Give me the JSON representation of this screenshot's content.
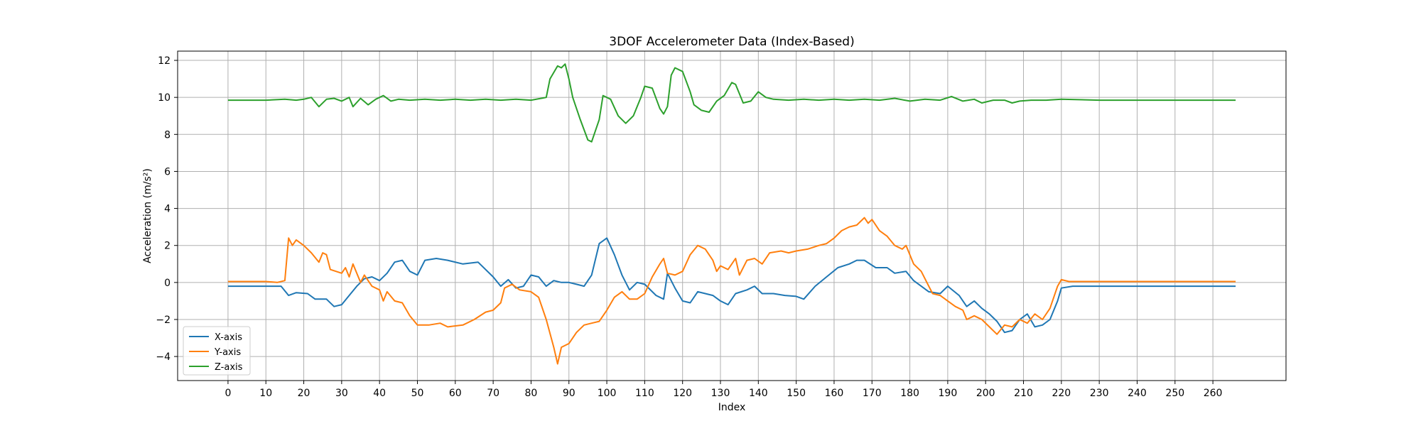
{
  "chart_data": {
    "type": "line",
    "title": "3DOF Accelerometer Data (Index-Based)",
    "xlabel": "Index",
    "ylabel": "Acceleration (m/s²)",
    "xlim": [
      -13.3,
      279.3
    ],
    "ylim": [
      -5.3,
      12.5
    ],
    "xticks": [
      0,
      10,
      20,
      30,
      40,
      50,
      60,
      70,
      80,
      90,
      100,
      110,
      120,
      130,
      140,
      150,
      160,
      170,
      180,
      190,
      200,
      210,
      220,
      230,
      240,
      250,
      260
    ],
    "yticks": [
      -4,
      -2,
      0,
      2,
      4,
      6,
      8,
      10,
      12
    ],
    "grid": true,
    "legend_position": "lower-left",
    "series": [
      {
        "name": "X-axis",
        "color": "#1f77b4",
        "points": [
          [
            0,
            -0.2
          ],
          [
            10,
            -0.2
          ],
          [
            14,
            -0.2
          ],
          [
            16,
            -0.7
          ],
          [
            18,
            -0.55
          ],
          [
            21,
            -0.6
          ],
          [
            23,
            -0.9
          ],
          [
            26,
            -0.9
          ],
          [
            28,
            -1.3
          ],
          [
            30,
            -1.2
          ],
          [
            32,
            -0.7
          ],
          [
            34,
            -0.2
          ],
          [
            36,
            0.2
          ],
          [
            38,
            0.3
          ],
          [
            40,
            0.1
          ],
          [
            42,
            0.5
          ],
          [
            44,
            1.1
          ],
          [
            46,
            1.2
          ],
          [
            48,
            0.6
          ],
          [
            50,
            0.4
          ],
          [
            52,
            1.2
          ],
          [
            55,
            1.3
          ],
          [
            58,
            1.2
          ],
          [
            62,
            1.0
          ],
          [
            66,
            1.1
          ],
          [
            70,
            0.3
          ],
          [
            72,
            -0.2
          ],
          [
            74,
            0.15
          ],
          [
            76,
            -0.3
          ],
          [
            78,
            -0.2
          ],
          [
            80,
            0.4
          ],
          [
            82,
            0.3
          ],
          [
            84,
            -0.2
          ],
          [
            86,
            0.1
          ],
          [
            88,
            0.0
          ],
          [
            90,
            0.0
          ],
          [
            92,
            -0.1
          ],
          [
            94,
            -0.2
          ],
          [
            96,
            0.4
          ],
          [
            98,
            2.1
          ],
          [
            100,
            2.4
          ],
          [
            102,
            1.5
          ],
          [
            104,
            0.4
          ],
          [
            106,
            -0.4
          ],
          [
            108,
            0.0
          ],
          [
            110,
            -0.1
          ],
          [
            113,
            -0.7
          ],
          [
            115,
            -0.9
          ],
          [
            116,
            0.5
          ],
          [
            118,
            -0.3
          ],
          [
            120,
            -1.0
          ],
          [
            122,
            -1.1
          ],
          [
            124,
            -0.5
          ],
          [
            126,
            -0.6
          ],
          [
            128,
            -0.7
          ],
          [
            130,
            -1.0
          ],
          [
            132,
            -1.2
          ],
          [
            134,
            -0.6
          ],
          [
            137,
            -0.4
          ],
          [
            139,
            -0.2
          ],
          [
            141,
            -0.6
          ],
          [
            144,
            -0.6
          ],
          [
            147,
            -0.7
          ],
          [
            150,
            -0.75
          ],
          [
            152,
            -0.9
          ],
          [
            155,
            -0.2
          ],
          [
            158,
            0.3
          ],
          [
            161,
            0.8
          ],
          [
            164,
            1.0
          ],
          [
            166,
            1.2
          ],
          [
            168,
            1.2
          ],
          [
            171,
            0.8
          ],
          [
            174,
            0.8
          ],
          [
            176,
            0.5
          ],
          [
            179,
            0.6
          ],
          [
            181,
            0.1
          ],
          [
            183,
            -0.2
          ],
          [
            185,
            -0.5
          ],
          [
            188,
            -0.6
          ],
          [
            190,
            -0.2
          ],
          [
            193,
            -0.7
          ],
          [
            195,
            -1.3
          ],
          [
            197,
            -1.0
          ],
          [
            199,
            -1.4
          ],
          [
            201,
            -1.7
          ],
          [
            203,
            -2.1
          ],
          [
            205,
            -2.7
          ],
          [
            207,
            -2.6
          ],
          [
            209,
            -2.0
          ],
          [
            211,
            -1.7
          ],
          [
            213,
            -2.4
          ],
          [
            215,
            -2.3
          ],
          [
            217,
            -2.0
          ],
          [
            219,
            -1.0
          ],
          [
            220,
            -0.3
          ],
          [
            223,
            -0.2
          ],
          [
            230,
            -0.2
          ],
          [
            240,
            -0.2
          ],
          [
            250,
            -0.2
          ],
          [
            260,
            -0.2
          ],
          [
            266,
            -0.2
          ]
        ]
      },
      {
        "name": "Y-axis",
        "color": "#ff7f0e",
        "points": [
          [
            0,
            0.05
          ],
          [
            10,
            0.05
          ],
          [
            13,
            0.0
          ],
          [
            15,
            0.1
          ],
          [
            16,
            2.4
          ],
          [
            17,
            2.0
          ],
          [
            18,
            2.3
          ],
          [
            20,
            2.0
          ],
          [
            22,
            1.6
          ],
          [
            24,
            1.1
          ],
          [
            25,
            1.6
          ],
          [
            26,
            1.5
          ],
          [
            27,
            0.7
          ],
          [
            30,
            0.5
          ],
          [
            31,
            0.8
          ],
          [
            32,
            0.3
          ],
          [
            33,
            1.0
          ],
          [
            35,
            0.0
          ],
          [
            36,
            0.4
          ],
          [
            38,
            -0.2
          ],
          [
            40,
            -0.4
          ],
          [
            41,
            -1.0
          ],
          [
            42,
            -0.5
          ],
          [
            44,
            -1.0
          ],
          [
            46,
            -1.1
          ],
          [
            48,
            -1.8
          ],
          [
            50,
            -2.3
          ],
          [
            53,
            -2.3
          ],
          [
            56,
            -2.2
          ],
          [
            58,
            -2.4
          ],
          [
            62,
            -2.3
          ],
          [
            65,
            -2.0
          ],
          [
            68,
            -1.6
          ],
          [
            70,
            -1.5
          ],
          [
            72,
            -1.1
          ],
          [
            73,
            -0.3
          ],
          [
            75,
            -0.1
          ],
          [
            77,
            -0.4
          ],
          [
            80,
            -0.5
          ],
          [
            82,
            -0.8
          ],
          [
            84,
            -2.0
          ],
          [
            86,
            -3.5
          ],
          [
            87,
            -4.4
          ],
          [
            88,
            -3.5
          ],
          [
            90,
            -3.3
          ],
          [
            92,
            -2.7
          ],
          [
            94,
            -2.3
          ],
          [
            96,
            -2.2
          ],
          [
            98,
            -2.1
          ],
          [
            100,
            -1.5
          ],
          [
            102,
            -0.8
          ],
          [
            104,
            -0.5
          ],
          [
            106,
            -0.9
          ],
          [
            108,
            -0.9
          ],
          [
            110,
            -0.6
          ],
          [
            112,
            0.3
          ],
          [
            114,
            1.0
          ],
          [
            115,
            1.3
          ],
          [
            116,
            0.5
          ],
          [
            118,
            0.4
          ],
          [
            120,
            0.6
          ],
          [
            122,
            1.5
          ],
          [
            124,
            2.0
          ],
          [
            126,
            1.8
          ],
          [
            128,
            1.2
          ],
          [
            129,
            0.6
          ],
          [
            130,
            0.9
          ],
          [
            132,
            0.7
          ],
          [
            134,
            1.3
          ],
          [
            135,
            0.4
          ],
          [
            137,
            1.2
          ],
          [
            139,
            1.3
          ],
          [
            141,
            1.0
          ],
          [
            143,
            1.6
          ],
          [
            146,
            1.7
          ],
          [
            148,
            1.6
          ],
          [
            150,
            1.7
          ],
          [
            153,
            1.8
          ],
          [
            156,
            2.0
          ],
          [
            158,
            2.1
          ],
          [
            160,
            2.4
          ],
          [
            162,
            2.8
          ],
          [
            164,
            3.0
          ],
          [
            166,
            3.1
          ],
          [
            168,
            3.5
          ],
          [
            169,
            3.2
          ],
          [
            170,
            3.4
          ],
          [
            172,
            2.8
          ],
          [
            174,
            2.5
          ],
          [
            176,
            2.0
          ],
          [
            178,
            1.8
          ],
          [
            179,
            2.0
          ],
          [
            181,
            1.0
          ],
          [
            183,
            0.6
          ],
          [
            185,
            -0.2
          ],
          [
            186,
            -0.6
          ],
          [
            188,
            -0.7
          ],
          [
            190,
            -1.0
          ],
          [
            192,
            -1.3
          ],
          [
            194,
            -1.5
          ],
          [
            195,
            -2.0
          ],
          [
            197,
            -1.8
          ],
          [
            199,
            -2.0
          ],
          [
            201,
            -2.4
          ],
          [
            203,
            -2.8
          ],
          [
            205,
            -2.3
          ],
          [
            207,
            -2.4
          ],
          [
            209,
            -2.0
          ],
          [
            211,
            -2.2
          ],
          [
            213,
            -1.7
          ],
          [
            215,
            -2.0
          ],
          [
            217,
            -1.4
          ],
          [
            219,
            -0.2
          ],
          [
            220,
            0.15
          ],
          [
            222,
            0.05
          ],
          [
            230,
            0.05
          ],
          [
            240,
            0.05
          ],
          [
            250,
            0.05
          ],
          [
            260,
            0.05
          ],
          [
            266,
            0.05
          ]
        ]
      },
      {
        "name": "Z-axis",
        "color": "#2ca02c",
        "points": [
          [
            0,
            9.85
          ],
          [
            10,
            9.85
          ],
          [
            15,
            9.9
          ],
          [
            18,
            9.85
          ],
          [
            20,
            9.9
          ],
          [
            22,
            10.0
          ],
          [
            24,
            9.5
          ],
          [
            26,
            9.9
          ],
          [
            28,
            9.95
          ],
          [
            30,
            9.8
          ],
          [
            32,
            10.0
          ],
          [
            33,
            9.5
          ],
          [
            35,
            9.95
          ],
          [
            37,
            9.6
          ],
          [
            39,
            9.9
          ],
          [
            41,
            10.1
          ],
          [
            43,
            9.8
          ],
          [
            45,
            9.9
          ],
          [
            48,
            9.85
          ],
          [
            52,
            9.9
          ],
          [
            56,
            9.85
          ],
          [
            60,
            9.9
          ],
          [
            64,
            9.85
          ],
          [
            68,
            9.9
          ],
          [
            72,
            9.85
          ],
          [
            76,
            9.9
          ],
          [
            80,
            9.85
          ],
          [
            84,
            10.0
          ],
          [
            85,
            11.0
          ],
          [
            87,
            11.7
          ],
          [
            88,
            11.6
          ],
          [
            89,
            11.8
          ],
          [
            90,
            11.0
          ],
          [
            91,
            10.0
          ],
          [
            93,
            8.8
          ],
          [
            95,
            7.7
          ],
          [
            96,
            7.6
          ],
          [
            98,
            8.8
          ],
          [
            99,
            10.1
          ],
          [
            101,
            9.9
          ],
          [
            103,
            9.0
          ],
          [
            105,
            8.6
          ],
          [
            107,
            9.0
          ],
          [
            109,
            10.0
          ],
          [
            110,
            10.6
          ],
          [
            112,
            10.5
          ],
          [
            114,
            9.4
          ],
          [
            115,
            9.1
          ],
          [
            116,
            9.5
          ],
          [
            117,
            11.2
          ],
          [
            118,
            11.6
          ],
          [
            120,
            11.4
          ],
          [
            122,
            10.3
          ],
          [
            123,
            9.6
          ],
          [
            125,
            9.3
          ],
          [
            127,
            9.2
          ],
          [
            129,
            9.8
          ],
          [
            131,
            10.1
          ],
          [
            133,
            10.8
          ],
          [
            134,
            10.7
          ],
          [
            135,
            10.2
          ],
          [
            136,
            9.7
          ],
          [
            138,
            9.8
          ],
          [
            140,
            10.3
          ],
          [
            142,
            10.0
          ],
          [
            144,
            9.9
          ],
          [
            148,
            9.85
          ],
          [
            152,
            9.9
          ],
          [
            156,
            9.85
          ],
          [
            160,
            9.9
          ],
          [
            164,
            9.85
          ],
          [
            168,
            9.9
          ],
          [
            172,
            9.85
          ],
          [
            176,
            9.95
          ],
          [
            180,
            9.8
          ],
          [
            184,
            9.9
          ],
          [
            188,
            9.85
          ],
          [
            191,
            10.05
          ],
          [
            194,
            9.8
          ],
          [
            197,
            9.9
          ],
          [
            199,
            9.7
          ],
          [
            202,
            9.85
          ],
          [
            205,
            9.85
          ],
          [
            207,
            9.7
          ],
          [
            209,
            9.8
          ],
          [
            212,
            9.85
          ],
          [
            216,
            9.85
          ],
          [
            220,
            9.9
          ],
          [
            230,
            9.85
          ],
          [
            240,
            9.85
          ],
          [
            250,
            9.85
          ],
          [
            260,
            9.85
          ],
          [
            266,
            9.85
          ]
        ]
      }
    ]
  }
}
